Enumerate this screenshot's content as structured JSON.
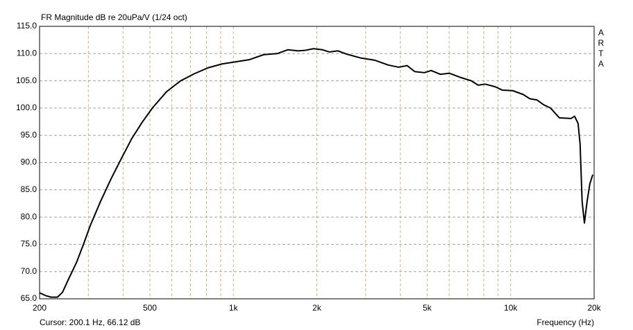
{
  "chart_data": {
    "type": "line",
    "title": "FR Magnitude dB re 20uPa/V (1/24 oct)",
    "logo": "ARTA",
    "cursor": "Cursor: 200.1 Hz, 66.12 dB",
    "x_label": "Frequency (Hz)",
    "x_scale": "log",
    "grid": true,
    "xlim": [
      200,
      20000
    ],
    "xticks": [
      200,
      500,
      {
        "value": 1000,
        "label": "1k"
      },
      {
        "value": 2000,
        "label": "2k"
      },
      {
        "value": 5000,
        "label": "5k"
      },
      {
        "value": 10000,
        "label": "10k"
      },
      {
        "value": 20000,
        "label": "20k"
      }
    ],
    "ylim": [
      65,
      115
    ],
    "yticks": [
      {
        "value": 65,
        "label": "65.0"
      },
      {
        "value": 70,
        "label": "70.0"
      },
      {
        "value": 75,
        "label": "75.0"
      },
      {
        "value": 80,
        "label": "80.0"
      },
      {
        "value": 85,
        "label": "85.0"
      },
      {
        "value": 90,
        "label": "90.0"
      },
      {
        "value": 95,
        "label": "95.0"
      },
      {
        "value": 100,
        "label": "100.0"
      },
      {
        "value": 105,
        "label": "105.0"
      },
      {
        "value": 110,
        "label": "110.0"
      },
      {
        "value": 115,
        "label": "115.0"
      }
    ],
    "x": [
      200,
      210,
      220,
      232,
      242,
      256,
      272,
      288,
      305,
      332,
      362,
      395,
      430,
      469,
      512,
      574,
      645,
      723,
      811,
      910,
      1021,
      1145,
      1285,
      1441,
      1570,
      1714,
      1815,
      1945,
      2096,
      2219,
      2379,
      2562,
      2875,
      3226,
      3619,
      3947,
      4231,
      4507,
      4886,
      5172,
      5573,
      6003,
      6620,
      7214,
      7637,
      8084,
      8810,
      9328,
      10170,
      11090,
      11740,
      12430,
      13160,
      13930,
      14990,
      16520,
      17000,
      17500,
      17800,
      18100,
      18450,
      18870,
      19300,
      19780
    ],
    "series": [
      {
        "color": "#000000",
        "values": [
          66.1,
          65.6,
          65.3,
          65.3,
          66.2,
          68.9,
          71.7,
          75.0,
          78.5,
          82.9,
          87.0,
          90.8,
          94.4,
          97.4,
          100.1,
          103.0,
          105.0,
          106.3,
          107.4,
          108.1,
          108.5,
          108.9,
          109.8,
          110.0,
          110.7,
          110.5,
          110.6,
          110.9,
          110.7,
          110.3,
          110.5,
          109.9,
          109.2,
          108.8,
          107.9,
          107.5,
          107.8,
          106.7,
          106.5,
          106.9,
          106.2,
          106.4,
          105.6,
          105.0,
          104.2,
          104.4,
          103.9,
          103.3,
          103.2,
          102.5,
          101.7,
          101.5,
          100.6,
          100.0,
          98.2,
          98.1,
          98.5,
          97.2,
          93.4,
          82.9,
          78.9,
          82.9,
          86.1,
          87.8
        ]
      }
    ]
  }
}
